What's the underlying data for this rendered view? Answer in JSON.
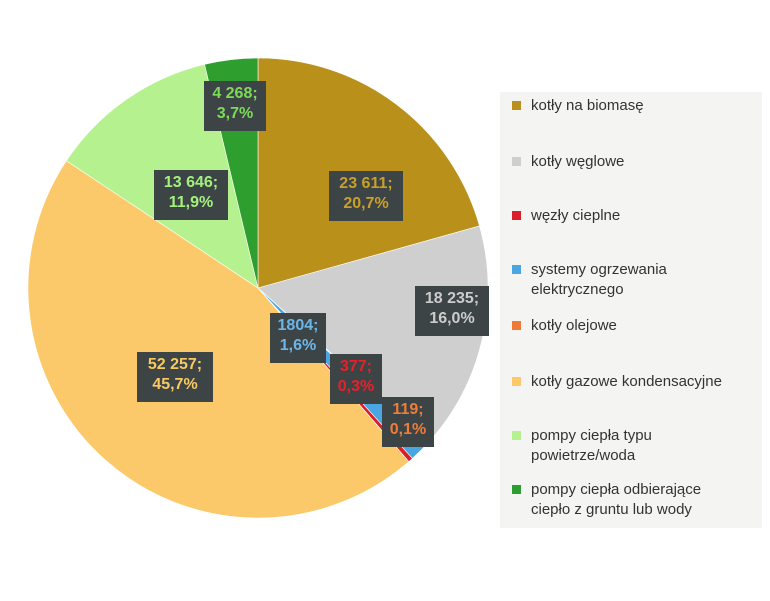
{
  "chart_data": {
    "type": "pie",
    "title": "",
    "start_angle_deg": 0,
    "direction": "clockwise",
    "slices": [
      {
        "name": "kotły na biomasę",
        "value": 23611,
        "value_label": "23 611;",
        "percent_label": "20,7%",
        "color": "#b8901a",
        "label_color": "#c9a02a"
      },
      {
        "name": "kotły węglowe",
        "value": 18235,
        "value_label": "18 235;",
        "percent_label": "16,0%",
        "color": "#cfcfcf",
        "label_color": "#cccccc"
      },
      {
        "name": "kotły olejowe",
        "value": 119,
        "value_label": "119;",
        "percent_label": "0,1%",
        "color": "#ee7a36",
        "label_color": "#f07c3a"
      },
      {
        "name": "systemy ogrzewania elektrycznego",
        "value": 1804,
        "value_label": "1804;",
        "percent_label": "1,6%",
        "color": "#4aa6e0",
        "label_color": "#6db6e8"
      },
      {
        "name": "węzły cieplne",
        "value": 377,
        "value_label": "377;",
        "percent_label": "0,3%",
        "color": "#d81f2a",
        "label_color": "#e8202a"
      },
      {
        "name": "kotły gazowe kondensacyjne",
        "value": 52257,
        "value_label": "52 257;",
        "percent_label": "45,7%",
        "color": "#fbc96a",
        "label_color": "#f9c962"
      },
      {
        "name": "pompy ciepła typu powietrze/woda",
        "value": 13646,
        "value_label": "13 646;",
        "percent_label": "11,9%",
        "color": "#b5f28f",
        "label_color": "#a6f07e"
      },
      {
        "name": "pompy ciepła odbierające ciepło z gruntu lub wody",
        "value": 4268,
        "value_label": "4 268;",
        "percent_label": "3,7%",
        "color": "#2e9f2e",
        "label_color": "#7cdc58"
      }
    ],
    "legend": {
      "placement": "right",
      "items": [
        {
          "lines": [
            "kotły na biomasę"
          ],
          "color": "#b8901a"
        },
        {
          "lines": [
            "kotły węglowe"
          ],
          "color": "#cfcfcf"
        },
        {
          "lines": [
            "węzły cieplne"
          ],
          "color": "#d81f2a"
        },
        {
          "lines": [
            "systemy ogrzewania",
            "elektrycznego"
          ],
          "color": "#4aa6e0"
        },
        {
          "lines": [
            "kotły olejowe"
          ],
          "color": "#ee7a36"
        },
        {
          "lines": [
            "kotły gazowe kondensacyjne"
          ],
          "color": "#fbc96a"
        },
        {
          "lines": [
            "pompy ciepła typu",
            "powietrze/woda"
          ],
          "color": "#b5f28f"
        },
        {
          "lines": [
            "pompy ciepła odbierające",
            "ciepło z gruntu lub wody"
          ],
          "color": "#2e9f2e"
        }
      ]
    }
  }
}
